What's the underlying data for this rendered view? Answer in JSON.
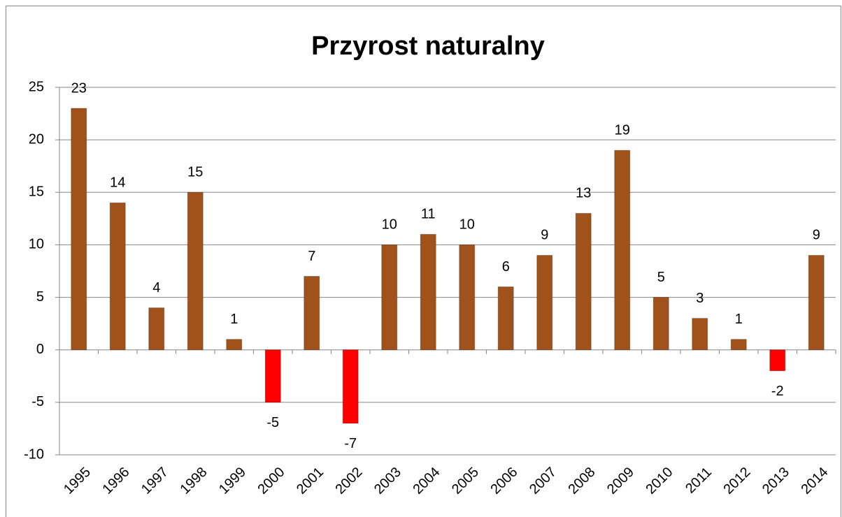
{
  "chart_data": {
    "type": "bar",
    "title": "Przyrost naturalny",
    "categories": [
      "1995",
      "1996",
      "1997",
      "1998",
      "1999",
      "2000",
      "2001",
      "2002",
      "2003",
      "2004",
      "2005",
      "2006",
      "2007",
      "2008",
      "2009",
      "2010",
      "2011",
      "2012",
      "2013",
      "2014"
    ],
    "values": [
      23,
      14,
      4,
      15,
      1,
      -5,
      7,
      -7,
      10,
      11,
      10,
      6,
      9,
      13,
      19,
      5,
      3,
      1,
      -2,
      9
    ],
    "color": "#a0521a",
    "negative_color": "#ff0000",
    "ylim": [
      -10,
      25
    ],
    "yticks": [
      -10,
      -5,
      0,
      5,
      10,
      15,
      20,
      25
    ],
    "grid": true
  }
}
